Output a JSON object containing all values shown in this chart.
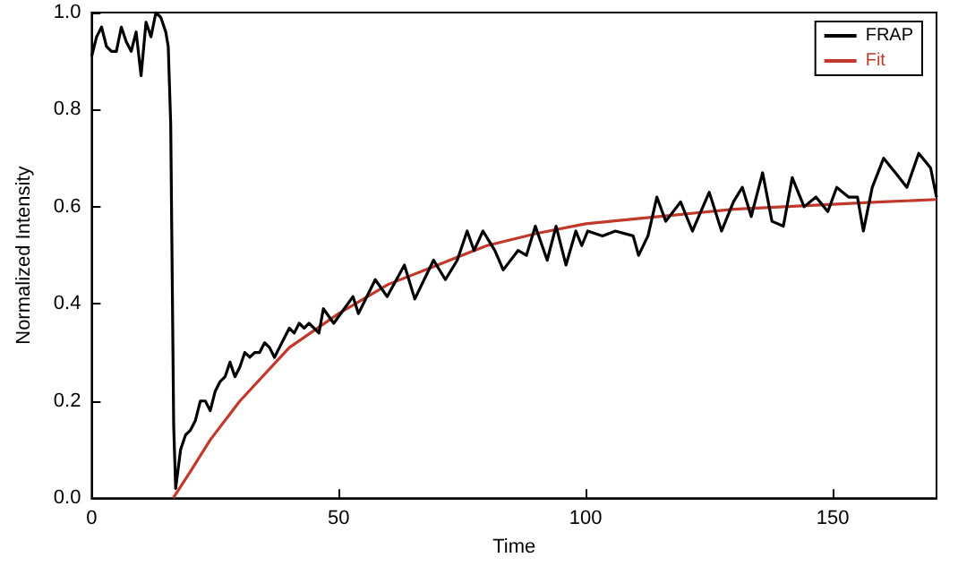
{
  "chart_data": {
    "type": "line",
    "xlabel": "Time",
    "ylabel": "Normalized Intensity",
    "xlim": [
      0,
      171
    ],
    "ylim": [
      0,
      1
    ],
    "xticks": [
      0,
      50,
      100,
      150
    ],
    "yticks": [
      {
        "value": 0,
        "label": "0.0"
      },
      0.2,
      0.4,
      0.6,
      0.8,
      {
        "value": 1,
        "label": "1.0"
      }
    ],
    "legend": "top right",
    "grid": false,
    "marker": "none",
    "line_style": "solid",
    "series": [
      {
        "name": "FRAP",
        "color": "#000000",
        "x": [
          0,
          1,
          2,
          3,
          4,
          5,
          6,
          7,
          8,
          9,
          10,
          11,
          12,
          13,
          14,
          15,
          15.5,
          16,
          16.3,
          16.6,
          17,
          18,
          19,
          20,
          21,
          22,
          23,
          24,
          25,
          26,
          27,
          28,
          29,
          30,
          31,
          32,
          33,
          34,
          35,
          36,
          37,
          38,
          39,
          40,
          41,
          42,
          43,
          44,
          45,
          46,
          46.9,
          49,
          52.9,
          54,
          57.4,
          59.8,
          63.3,
          65.4,
          69.2,
          71.6,
          74,
          76,
          77.4,
          79.2,
          81.6,
          83.3,
          86.3,
          88,
          89.8,
          92.2,
          94,
          96,
          98,
          99.2,
          100.4,
          103.4,
          106,
          109.6,
          110.7,
          112.6,
          114.4,
          116.2,
          119.2,
          121.6,
          125,
          127.5,
          129.9,
          131.7,
          133.5,
          135.8,
          137.7,
          140,
          141.8,
          144.2,
          146.6,
          149,
          150.8,
          153.2,
          155,
          156.2,
          158,
          160.3,
          162.7,
          165,
          167.4,
          169.8,
          171
        ],
        "values": [
          0.91,
          0.95,
          0.97,
          0.93,
          0.92,
          0.92,
          0.97,
          0.94,
          0.92,
          0.96,
          0.87,
          0.98,
          0.95,
          1.0,
          0.99,
          0.96,
          0.93,
          0.77,
          0.46,
          0.15,
          0.02,
          0.1,
          0.13,
          0.14,
          0.16,
          0.2,
          0.2,
          0.18,
          0.22,
          0.24,
          0.25,
          0.28,
          0.25,
          0.27,
          0.3,
          0.29,
          0.3,
          0.3,
          0.32,
          0.31,
          0.29,
          0.31,
          0.33,
          0.35,
          0.34,
          0.36,
          0.35,
          0.36,
          0.35,
          0.34,
          0.39,
          0.36,
          0.415,
          0.38,
          0.45,
          0.415,
          0.48,
          0.41,
          0.49,
          0.45,
          0.49,
          0.55,
          0.51,
          0.55,
          0.51,
          0.47,
          0.51,
          0.5,
          0.56,
          0.49,
          0.56,
          0.48,
          0.55,
          0.52,
          0.55,
          0.54,
          0.55,
          0.54,
          0.5,
          0.54,
          0.62,
          0.57,
          0.61,
          0.55,
          0.63,
          0.55,
          0.61,
          0.64,
          0.58,
          0.67,
          0.57,
          0.56,
          0.66,
          0.6,
          0.62,
          0.59,
          0.64,
          0.62,
          0.62,
          0.55,
          0.64,
          0.7,
          0.67,
          0.64,
          0.71,
          0.68,
          0.62
        ]
      },
      {
        "name": "Fit",
        "color": "#c0392b",
        "x": [
          16.5,
          20,
          24,
          30,
          40,
          50,
          60,
          70,
          80,
          90,
          100,
          110,
          120,
          130,
          140,
          150,
          160,
          171
        ],
        "values": [
          0,
          0.055,
          0.12,
          0.2,
          0.31,
          0.38,
          0.44,
          0.48,
          0.52,
          0.545,
          0.565,
          0.575,
          0.585,
          0.595,
          0.6,
          0.605,
          0.61,
          0.615
        ]
      }
    ]
  }
}
